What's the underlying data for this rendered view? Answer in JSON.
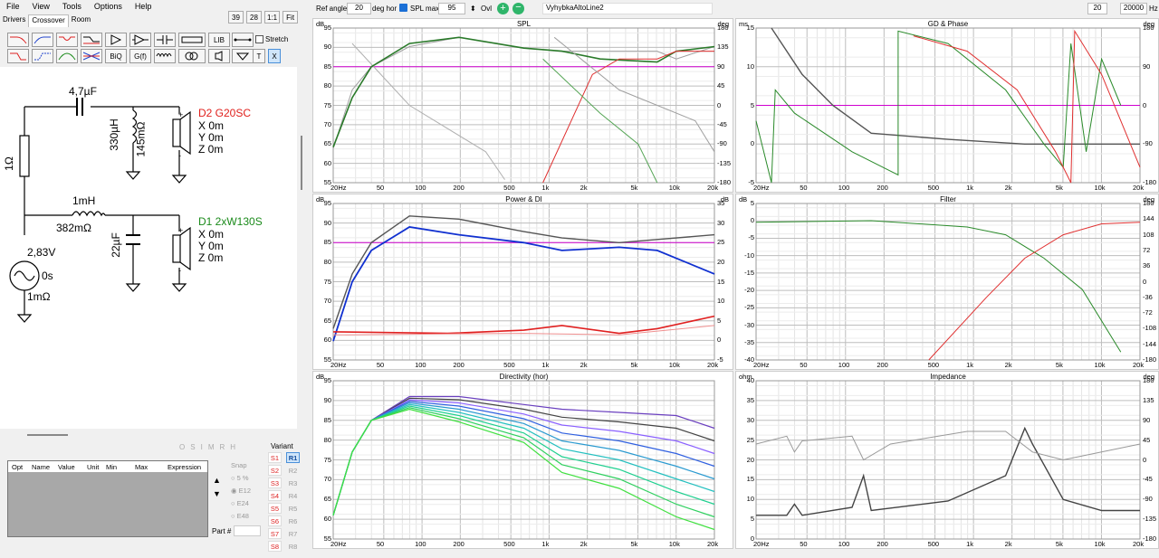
{
  "menu": [
    "File",
    "View",
    "Tools",
    "Options",
    "Help"
  ],
  "tabs": [
    "Drivers",
    "Crossover",
    "Room"
  ],
  "view_buttons": [
    "39",
    "28",
    "1:1",
    "Fit"
  ],
  "toolbar": {
    "stretch_label": "Stretch",
    "buttons": [
      "BiQ",
      "G(f)",
      "LIB",
      "T",
      "X"
    ]
  },
  "schematic": {
    "cap1": "4,7µF",
    "res1": "1Ω",
    "ind1": "330µH",
    "ind1_r": "145mΩ",
    "driver1": "D2 G20SC",
    "driver1_x": "X 0m",
    "driver1_y": "Y 0m",
    "driver1_z": "Z 0m",
    "ind2": "1mH",
    "ind2_r": "382mΩ",
    "cap2": "22µF",
    "driver2": "D1 2xW130S",
    "driver2_x": "X 0m",
    "driver2_y": "Y 0m",
    "driver2_z": "Z 0m",
    "source_v": "2,83V",
    "source_t": "0s",
    "source_r": "1mΩ",
    "driver1_color": "#e0201c",
    "driver2_color": "#1a8a1a"
  },
  "optbar": [
    "O",
    "S",
    "I",
    "M",
    "R",
    "H"
  ],
  "table_headers": [
    "Opt",
    "Name",
    "Value",
    "Unit",
    "Min",
    "Max",
    "Expression"
  ],
  "snap": {
    "label": "Snap",
    "options": [
      "5 %",
      "E12",
      "E24",
      "E48"
    ],
    "part_label": "Part #"
  },
  "variant": {
    "label": "Variant",
    "s": [
      "S1",
      "S2",
      "S3",
      "S4",
      "S5",
      "S6",
      "S7",
      "S8"
    ],
    "r": [
      "R1",
      "R2",
      "R3",
      "R4",
      "R5",
      "R6",
      "R7",
      "R8"
    ]
  },
  "top": {
    "ref_angle_label": "Ref angle",
    "ref_angle": "20",
    "deg_hor": "deg hor",
    "spl_max_label": "SPL max",
    "spl_max": "95",
    "ovl": "Ovl",
    "file": "VyhybkaAltoLine2",
    "fmin": "20",
    "fmax": "20000",
    "hz": "Hz"
  },
  "plots": {
    "spl": {
      "title": "SPL",
      "yl": "dB",
      "yr": "deg",
      "yticks": [
        "95",
        "90",
        "85",
        "80",
        "75",
        "70",
        "65",
        "60",
        "55"
      ],
      "rticks": [
        "180",
        "135",
        "90",
        "45",
        "0",
        "-45",
        "-90",
        "-135",
        "-180"
      ]
    },
    "gd": {
      "title": "GD & Phase",
      "yl": "ms",
      "yr": "deg",
      "yticks": [
        "15",
        "10",
        "5",
        "0",
        "-5"
      ],
      "rticks": [
        "180",
        "90",
        "0",
        "-90",
        "-180"
      ]
    },
    "power": {
      "title": "Power & DI",
      "yl": "dB",
      "yr": "dB",
      "yticks": [
        "95",
        "90",
        "85",
        "80",
        "75",
        "70",
        "65",
        "60",
        "55"
      ],
      "rticks": [
        "35",
        "30",
        "25",
        "20",
        "15",
        "10",
        "5",
        "0",
        "-5"
      ]
    },
    "filter": {
      "title": "Filter",
      "yl": "dB",
      "yr": "deg",
      "yticks": [
        "5",
        "0",
        "-5",
        "-10",
        "-15",
        "-20",
        "-25",
        "-30",
        "-35",
        "-40"
      ],
      "rticks": [
        "180",
        "144",
        "108",
        "72",
        "36",
        "0",
        "-36",
        "-72",
        "-108",
        "-144",
        "-180"
      ]
    },
    "dir": {
      "title": "Directivity (hor)",
      "yl": "dB",
      "yr": "",
      "yticks": [
        "95",
        "90",
        "85",
        "80",
        "75",
        "70",
        "65",
        "60",
        "55"
      ],
      "rticks": []
    },
    "imp": {
      "title": "Impedance",
      "yl": "ohm",
      "yr": "deg",
      "yticks": [
        "40",
        "35",
        "30",
        "25",
        "20",
        "15",
        "10",
        "5",
        "0"
      ],
      "rticks": [
        "180",
        "135",
        "90",
        "45",
        "0",
        "-45",
        "-90",
        "-135",
        "-180"
      ]
    }
  },
  "xticks": [
    "20Hz",
    "50",
    "100",
    "200",
    "500",
    "1k",
    "2k",
    "5k",
    "10k",
    "20k"
  ]
}
